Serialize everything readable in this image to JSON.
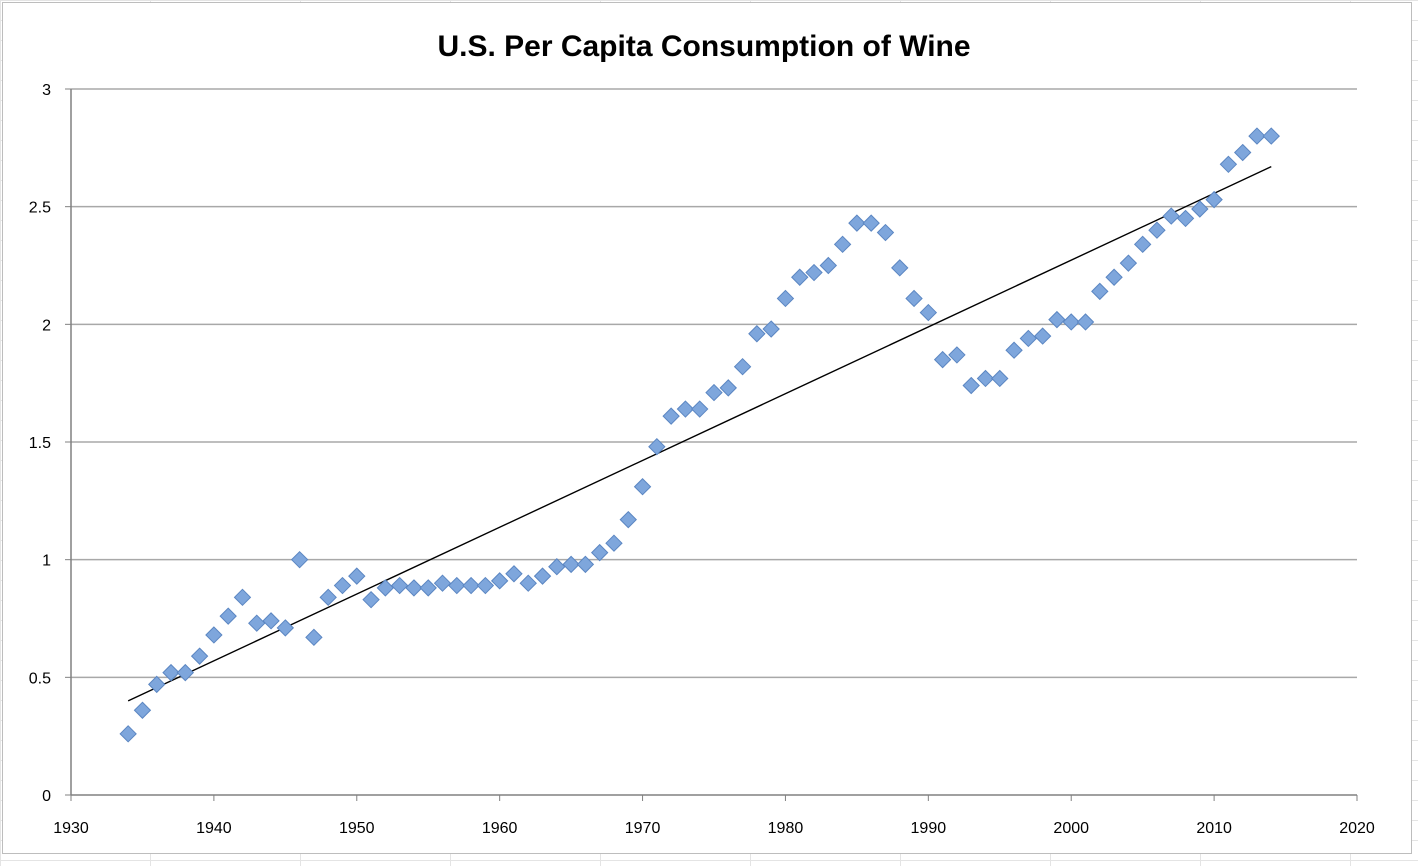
{
  "chart_data": {
    "type": "scatter",
    "title": "U.S. Per Capita Consumption of Wine",
    "xlabel": "",
    "ylabel": "",
    "xlim": [
      1930,
      2020
    ],
    "ylim": [
      0,
      3
    ],
    "x_ticks": [
      1930,
      1940,
      1950,
      1960,
      1970,
      1980,
      1990,
      2000,
      2010,
      2020
    ],
    "y_ticks": [
      0,
      0.5,
      1,
      1.5,
      2,
      2.5,
      3
    ],
    "x_tick_labels": [
      "1930",
      "1940",
      "1950",
      "1960",
      "1970",
      "1980",
      "1990",
      "2000",
      "2010",
      "2020"
    ],
    "y_tick_labels": [
      "0",
      "0.5",
      "1",
      "1.5",
      "2",
      "2.5",
      "3"
    ],
    "grid": "horizontal",
    "legend": "none",
    "marker": "diamond",
    "marker_color": "#7ea6dc",
    "marker_edge_color": "#5b86c2",
    "trendline": {
      "type": "linear",
      "x": [
        1934,
        2014
      ],
      "y": [
        0.4,
        2.67
      ],
      "color": "#000000"
    },
    "series": [
      {
        "x": [
          1934,
          1935,
          1936,
          1937,
          1938,
          1939,
          1940,
          1941,
          1942,
          1943,
          1944,
          1945,
          1946,
          1947,
          1948,
          1949,
          1950,
          1951,
          1952,
          1953,
          1954,
          1955,
          1956,
          1957,
          1958,
          1959,
          1960,
          1961,
          1962,
          1963,
          1964,
          1965,
          1966,
          1967,
          1968,
          1969,
          1970,
          1971,
          1972,
          1973,
          1974,
          1975,
          1976,
          1977,
          1978,
          1979,
          1980,
          1981,
          1982,
          1983,
          1984,
          1985,
          1986,
          1987,
          1988,
          1989,
          1990,
          1991,
          1992,
          1993,
          1994,
          1995,
          1996,
          1997,
          1998,
          1999,
          2000,
          2001,
          2002,
          2003,
          2004,
          2005,
          2006,
          2007,
          2008,
          2009,
          2010,
          2011,
          2012,
          2013,
          2014
        ],
        "y": [
          0.26,
          0.36,
          0.47,
          0.52,
          0.52,
          0.59,
          0.68,
          0.76,
          0.84,
          0.73,
          0.74,
          0.71,
          1.0,
          0.67,
          0.84,
          0.89,
          0.93,
          0.83,
          0.88,
          0.89,
          0.88,
          0.88,
          0.9,
          0.89,
          0.89,
          0.89,
          0.91,
          0.94,
          0.9,
          0.93,
          0.97,
          0.98,
          0.98,
          1.03,
          1.07,
          1.17,
          1.31,
          1.48,
          1.61,
          1.64,
          1.64,
          1.71,
          1.73,
          1.82,
          1.96,
          1.98,
          2.11,
          2.2,
          2.22,
          2.25,
          2.34,
          2.43,
          2.43,
          2.39,
          2.24,
          2.11,
          2.05,
          1.85,
          1.87,
          1.74,
          1.77,
          1.77,
          1.89,
          1.94,
          1.95,
          2.02,
          2.01,
          2.01,
          2.14,
          2.2,
          2.26,
          2.34,
          2.4,
          2.46,
          2.45,
          2.49,
          2.53,
          2.68,
          2.73,
          2.8,
          2.8
        ]
      }
    ]
  }
}
